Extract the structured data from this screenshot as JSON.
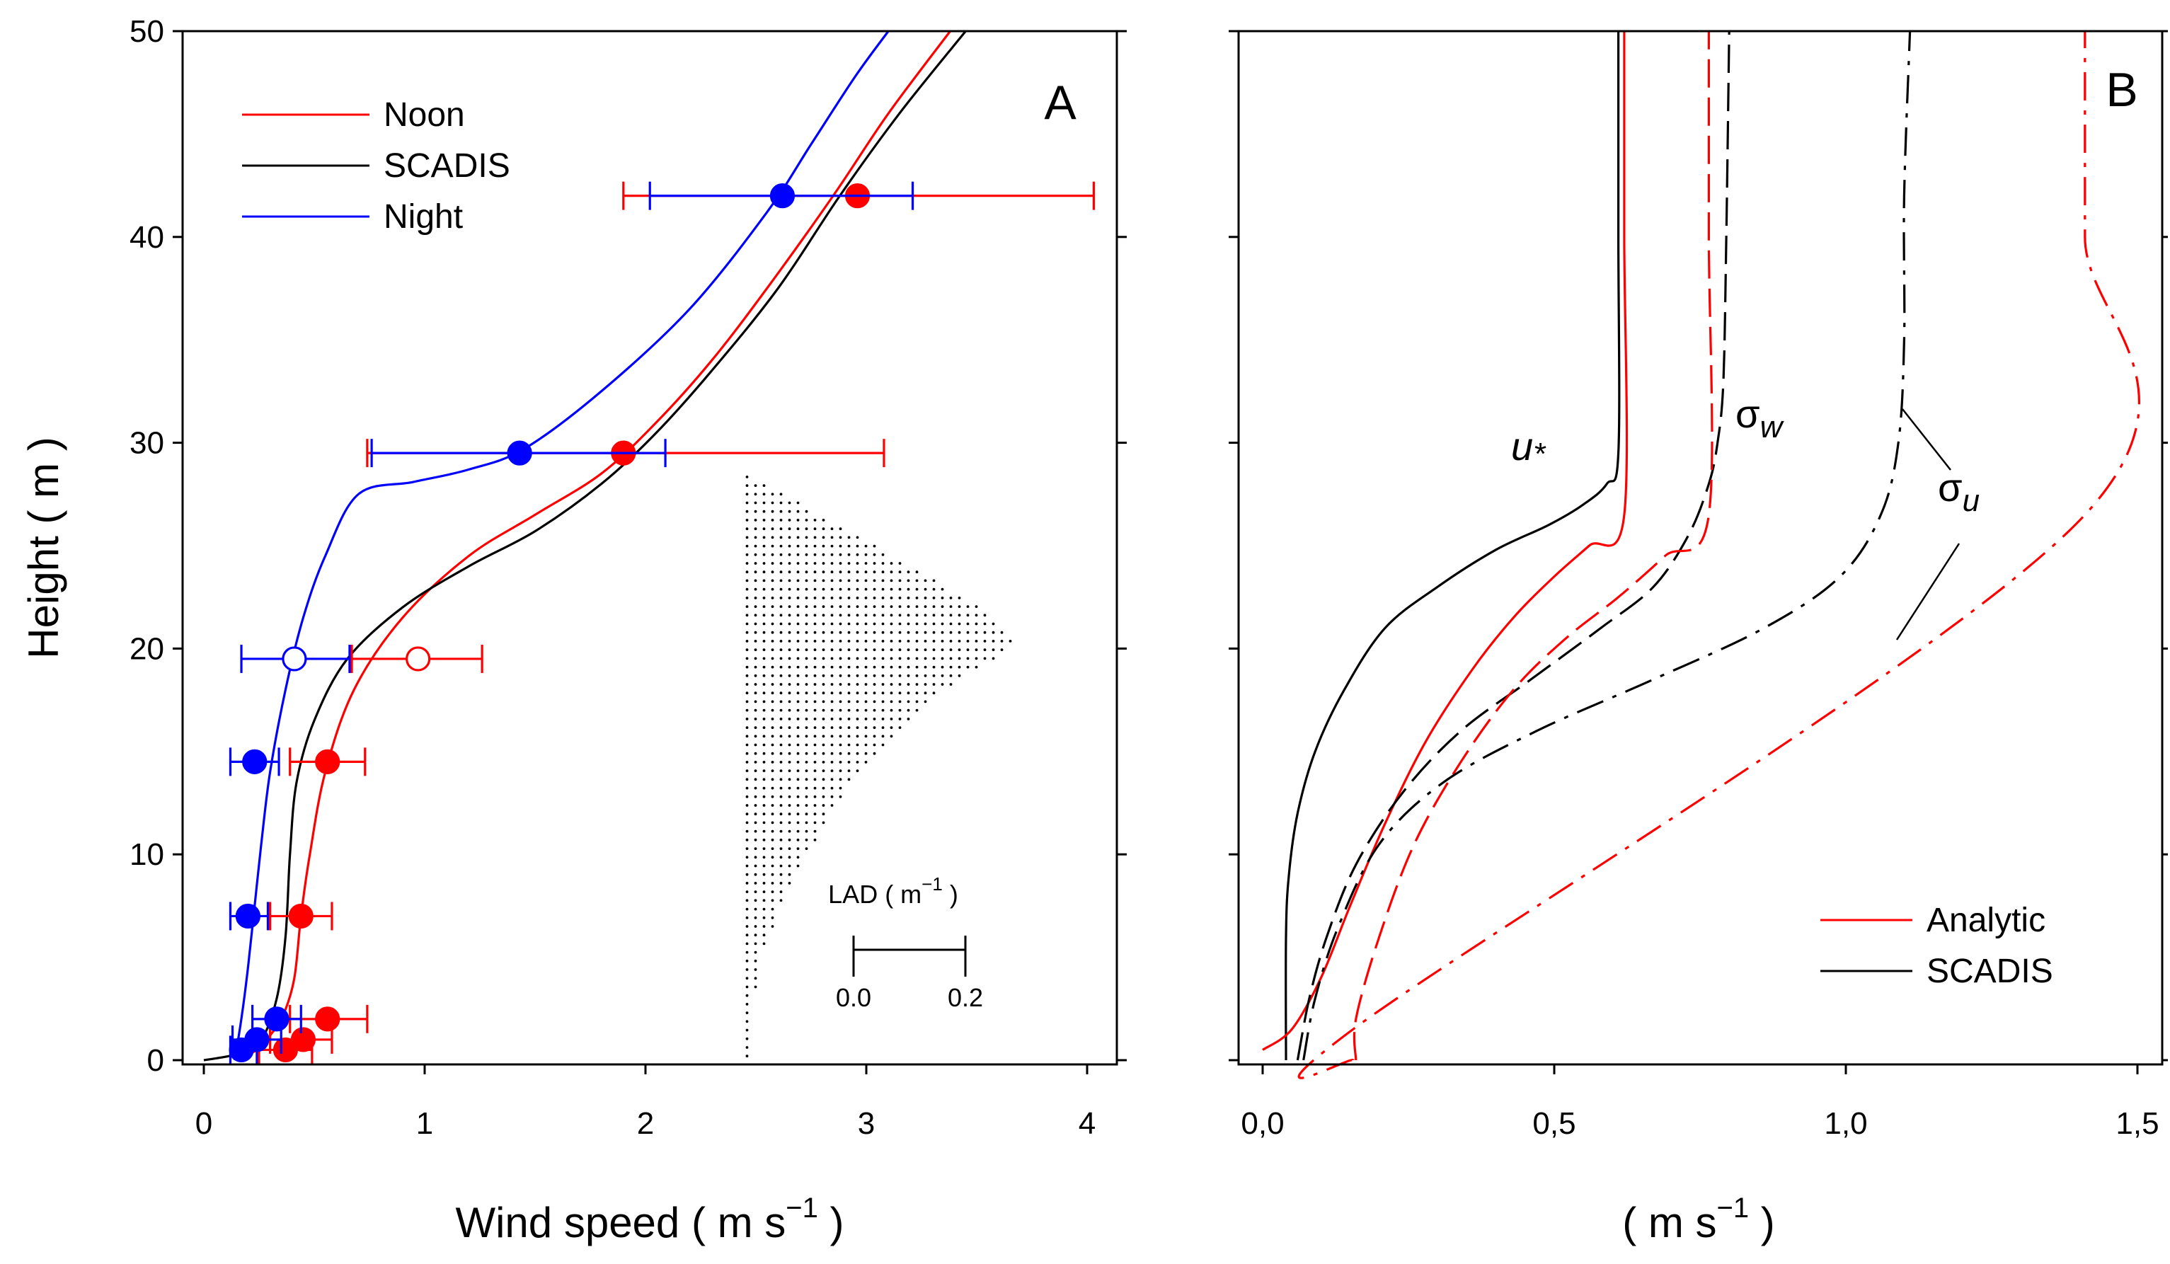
{
  "colors": {
    "noon": "#ff0000",
    "night": "#0000ff",
    "scadis": "#000000",
    "analytic": "#ff0000"
  },
  "chart_data": [
    {
      "type": "line",
      "panel": "A",
      "xlabel": "Wind speed ( m s",
      "xlabel_sup": "−1",
      "xlabel_end": " )",
      "ylabel": "Height ( m )",
      "xlim": [
        -0.1,
        4.1
      ],
      "ylim": [
        0,
        50
      ],
      "xticks": [
        "0",
        "1",
        "2",
        "3",
        "4"
      ],
      "yticks": [
        "0",
        "10",
        "20",
        "30",
        "40",
        "50"
      ],
      "legend": {
        "position": "top-left",
        "entries": [
          "Noon",
          "SCADIS",
          "Night"
        ]
      },
      "series": [
        {
          "name": "Noon",
          "color": "#ff0000",
          "x": [
            0.15,
            0.24,
            0.3,
            0.36,
            0.41,
            0.44,
            0.48,
            0.55,
            0.68,
            0.9,
            1.2,
            1.5,
            1.8,
            2.05,
            2.3,
            2.55,
            2.85,
            3.1,
            3.38
          ],
          "y": [
            0,
            0.5,
            1.2,
            2.2,
            4,
            7,
            10,
            14,
            18,
            21.5,
            24.5,
            26.5,
            28.5,
            31,
            34,
            37.5,
            42,
            46,
            50
          ]
        },
        {
          "name": "SCADIS",
          "color": "#000000",
          "x": [
            0.0,
            0.15,
            0.26,
            0.33,
            0.37,
            0.39,
            0.42,
            0.5,
            0.65,
            0.9,
            1.2,
            1.5,
            1.8,
            2.05,
            2.3,
            2.6,
            2.88,
            3.15,
            3.45
          ],
          "y": [
            0,
            0.3,
            1.0,
            3,
            6,
            10,
            13.5,
            16.5,
            19.5,
            22,
            24,
            25.7,
            28,
            30.5,
            33.5,
            37.5,
            42,
            46,
            50
          ]
        },
        {
          "name": "Night",
          "color": "#0000ff",
          "x": [
            0.14,
            0.17,
            0.2,
            0.23,
            0.26,
            0.3,
            0.37,
            0.45,
            0.55,
            0.7,
            0.95,
            1.2,
            1.45,
            1.8,
            2.2,
            2.55,
            2.75,
            2.95,
            3.1
          ],
          "y": [
            0,
            2,
            4.5,
            7.5,
            10.5,
            14,
            18,
            21.5,
            24.5,
            27.5,
            28.1,
            28.7,
            29.7,
            32.5,
            36.5,
            41.2,
            44.5,
            47.8,
            50
          ]
        }
      ],
      "observations": [
        {
          "series": "Noon",
          "color": "#ff0000",
          "x": 2.96,
          "y": 42,
          "xerr": [
            1.9,
            4.03
          ],
          "filled": true
        },
        {
          "series": "Noon",
          "color": "#ff0000",
          "x": 1.9,
          "y": 29.5,
          "xerr": [
            0.74,
            3.08
          ],
          "filled": true
        },
        {
          "series": "Noon",
          "color": "#ff0000",
          "x": 0.97,
          "y": 19.5,
          "xerr": [
            0.67,
            1.26
          ],
          "filled": false
        },
        {
          "series": "Noon",
          "color": "#ff0000",
          "x": 0.56,
          "y": 14.5,
          "xerr": [
            0.39,
            0.73
          ],
          "filled": true
        },
        {
          "series": "Noon",
          "color": "#ff0000",
          "x": 0.44,
          "y": 7,
          "xerr": [
            0.3,
            0.58
          ],
          "filled": true
        },
        {
          "series": "Noon",
          "color": "#ff0000",
          "x": 0.56,
          "y": 2,
          "xerr": [
            0.39,
            0.74
          ],
          "filled": true
        },
        {
          "series": "Noon",
          "color": "#ff0000",
          "x": 0.45,
          "y": 1,
          "xerr": [
            0.3,
            0.58
          ],
          "filled": true
        },
        {
          "series": "Noon",
          "color": "#ff0000",
          "x": 0.37,
          "y": 0.5,
          "xerr": [
            0.25,
            0.49
          ],
          "filled": true
        },
        {
          "series": "Night",
          "color": "#0000ff",
          "x": 2.62,
          "y": 42,
          "xerr": [
            2.02,
            3.21
          ],
          "filled": true
        },
        {
          "series": "Night",
          "color": "#0000ff",
          "x": 1.43,
          "y": 29.5,
          "xerr": [
            0.76,
            2.09
          ],
          "filled": true
        },
        {
          "series": "Night",
          "color": "#0000ff",
          "x": 0.41,
          "y": 19.5,
          "xerr": [
            0.17,
            0.66
          ],
          "filled": false
        },
        {
          "series": "Night",
          "color": "#0000ff",
          "x": 0.23,
          "y": 14.5,
          "xerr": [
            0.12,
            0.34
          ],
          "filled": true
        },
        {
          "series": "Night",
          "color": "#0000ff",
          "x": 0.2,
          "y": 7,
          "xerr": [
            0.12,
            0.29
          ],
          "filled": true
        },
        {
          "series": "Night",
          "color": "#0000ff",
          "x": 0.33,
          "y": 2,
          "xerr": [
            0.22,
            0.44
          ],
          "filled": true
        },
        {
          "series": "Night",
          "color": "#0000ff",
          "x": 0.24,
          "y": 1,
          "xerr": [
            0.13,
            0.35
          ],
          "filled": true
        },
        {
          "series": "Night",
          "color": "#0000ff",
          "x": 0.17,
          "y": 0.5,
          "xerr": [
            0.12,
            0.24
          ],
          "filled": true
        }
      ],
      "lad": {
        "label": "LAD ( m",
        "label_sup": "−1",
        "label_end": " )",
        "scale_labels": [
          "0.0",
          "0.2"
        ],
        "base_x": 2.46,
        "scale_x_per_m1": 3.4,
        "profile": [
          [
            0,
            0.005
          ],
          [
            2,
            0.007
          ],
          [
            5,
            0.018
          ],
          [
            8,
            0.05
          ],
          [
            10,
            0.08
          ],
          [
            12,
            0.11
          ],
          [
            14,
            0.15
          ],
          [
            16,
            0.2
          ],
          [
            18,
            0.26
          ],
          [
            20,
            0.35
          ],
          [
            20.5,
            0.36
          ],
          [
            22,
            0.31
          ],
          [
            24,
            0.22
          ],
          [
            26,
            0.12
          ],
          [
            28,
            0.025
          ],
          [
            28.5,
            0.0
          ]
        ]
      }
    },
    {
      "type": "line",
      "panel": "B",
      "xlabel": "( m s",
      "xlabel_sup": "−1",
      "xlabel_end": " )",
      "xlim": [
        -0.05,
        1.55
      ],
      "ylim": [
        0,
        50
      ],
      "xticks": [
        "0,0",
        "0,5",
        "1,0",
        "1,5"
      ],
      "legend": {
        "position": "bottom-right",
        "entries": [
          "Analytic",
          "SCADIS"
        ]
      },
      "annotations": [
        "u",
        "*",
        "σ",
        "w",
        "σ",
        "u"
      ],
      "series": [
        {
          "name": "u* SCADIS",
          "color": "#000000",
          "dash": "solid",
          "x": [
            0.04,
            0.04,
            0.045,
            0.06,
            0.09,
            0.14,
            0.21,
            0.3,
            0.4,
            0.49,
            0.55,
            0.59,
            0.61,
            0.61,
            0.61
          ],
          "y": [
            0,
            6,
            9,
            12,
            15,
            18,
            21,
            23,
            24.8,
            26,
            27,
            28,
            29.5,
            40,
            50
          ]
        },
        {
          "name": "u* Analytic",
          "color": "#ff0000",
          "dash": "solid",
          "x": [
            0.0,
            0.05,
            0.1,
            0.15,
            0.21,
            0.28,
            0.36,
            0.43,
            0.5,
            0.56,
            0.62,
            0.62,
            0.62
          ],
          "y": [
            0.5,
            1.5,
            4,
            7.5,
            11.5,
            15.5,
            19,
            21.5,
            23.5,
            25,
            26.5,
            40,
            50
          ]
        },
        {
          "name": "σw SCADIS",
          "color": "#000000",
          "dash": "dash",
          "x": [
            0.06,
            0.08,
            0.11,
            0.16,
            0.24,
            0.34,
            0.46,
            0.58,
            0.67,
            0.73,
            0.765,
            0.78,
            0.79,
            0.795,
            0.8
          ],
          "y": [
            0,
            3,
            6,
            9.5,
            13,
            16,
            18.5,
            21,
            23,
            25.5,
            28,
            30,
            33,
            40,
            50
          ]
        },
        {
          "name": "σw Analytic",
          "color": "#ff0000",
          "dash": "dash",
          "x": [
            0.16,
            0.16,
            0.2,
            0.26,
            0.34,
            0.43,
            0.52,
            0.61,
            0.69,
            0.765,
            0.765,
            0.765
          ],
          "y": [
            0,
            2,
            6,
            10.5,
            14.5,
            18,
            20.5,
            22.5,
            24.5,
            26.5,
            40,
            50
          ]
        },
        {
          "name": "σu SCADIS",
          "color": "#000000",
          "dash": "dashdot",
          "x": [
            0.07,
            0.09,
            0.13,
            0.2,
            0.31,
            0.47,
            0.67,
            0.86,
            0.99,
            1.06,
            1.09,
            1.1,
            1.1,
            1.11
          ],
          "y": [
            0,
            3,
            6.5,
            10.5,
            13.5,
            16,
            18.5,
            21,
            23.5,
            26.5,
            30,
            35,
            42,
            50
          ]
        },
        {
          "name": "σu Analytic",
          "color": "#ff0000",
          "dash": "dashdot",
          "x": [
            0.155,
            0.155,
            1.41,
            1.41,
            1.41
          ],
          "y": [
            0,
            1.5,
            26.5,
            40,
            50
          ]
        }
      ]
    }
  ]
}
